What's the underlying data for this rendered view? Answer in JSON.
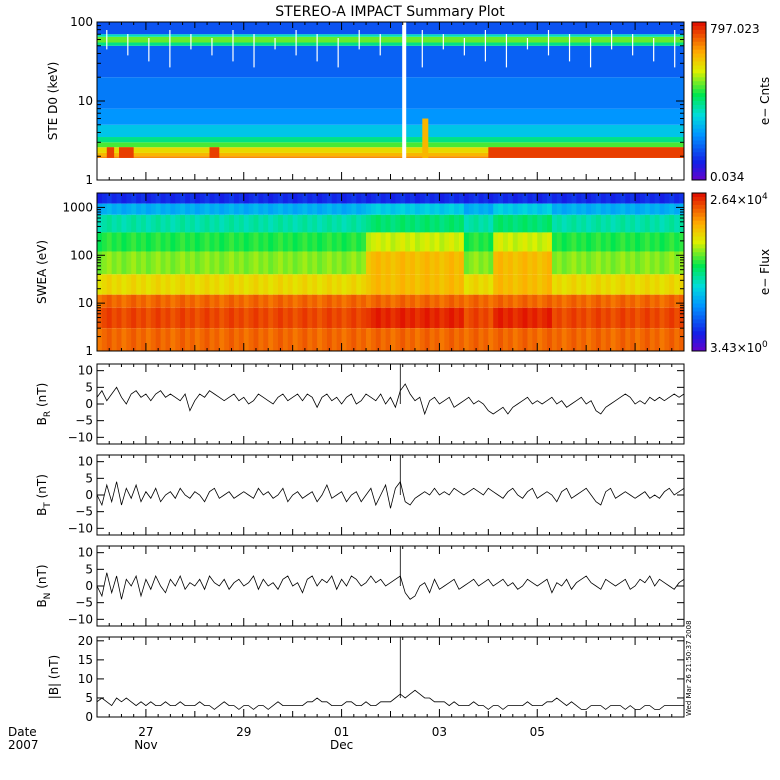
{
  "chart_data": [
    {
      "type": "heatmap",
      "id": "ste",
      "title": "STEREO-A IMPACT Summary Plot",
      "ylabel": "STE D0 (keV)",
      "yscale": "log",
      "ylim": [
        1,
        100
      ],
      "yticks": [
        1,
        10,
        100
      ],
      "ytick_labels": [
        "1",
        "10",
        "100"
      ],
      "colorbar": {
        "label": "e− Cnts",
        "max": "797.023",
        "min": "0.034"
      },
      "data_gap_day": 6.28
    },
    {
      "type": "heatmap",
      "id": "swea",
      "ylabel": "SWEA (eV)",
      "yscale": "log",
      "ylim": [
        1,
        2000
      ],
      "yticks": [
        1,
        10,
        100,
        1000
      ],
      "ytick_labels": [
        "1",
        "10",
        "100",
        "1000"
      ],
      "colorbar": {
        "label": "e− Flux",
        "max_mant": "2.64×10",
        "max_exp": "4",
        "min_mant": "3.43×10",
        "min_exp": "0"
      }
    },
    {
      "type": "line",
      "id": "br",
      "ylabel_main": "B",
      "ylabel_sub": "R",
      "ylabel_unit": " (nT)",
      "ylim": [
        -12,
        12
      ],
      "yticks": [
        -10,
        -5,
        0,
        5,
        10
      ],
      "ytick_labels": [
        "−10",
        "−5",
        "0",
        "5",
        "10"
      ],
      "x": [
        0,
        0.1,
        0.2,
        0.3,
        0.4,
        0.5,
        0.6,
        0.7,
        0.8,
        0.9,
        1,
        1.1,
        1.2,
        1.3,
        1.4,
        1.5,
        1.6,
        1.7,
        1.8,
        1.9,
        2,
        2.1,
        2.2,
        2.3,
        2.4,
        2.5,
        2.6,
        2.7,
        2.8,
        2.9,
        3,
        3.1,
        3.2,
        3.3,
        3.4,
        3.5,
        3.6,
        3.7,
        3.8,
        3.9,
        4,
        4.1,
        4.2,
        4.3,
        4.4,
        4.5,
        4.6,
        4.7,
        4.8,
        4.9,
        5,
        5.1,
        5.2,
        5.3,
        5.4,
        5.5,
        5.6,
        5.7,
        5.8,
        5.9,
        6,
        6.1,
        6.2,
        6.3,
        6.4,
        6.5,
        6.6,
        6.7,
        6.8,
        6.9,
        7,
        7.1,
        7.2,
        7.3,
        7.4,
        7.5,
        7.6,
        7.7,
        7.8,
        7.9,
        8,
        8.1,
        8.2,
        8.3,
        8.4,
        8.5,
        8.6,
        8.7,
        8.8,
        8.9,
        9,
        9.1,
        9.2,
        9.3,
        9.4,
        9.5,
        9.6,
        9.7,
        9.8,
        9.9,
        10,
        10.1,
        10.2,
        10.3,
        10.4,
        10.5,
        10.6,
        10.7,
        10.8,
        10.9,
        11,
        11.1,
        11.2,
        11.3,
        11.4,
        11.5,
        11.6,
        11.7,
        11.8,
        11.9,
        12
      ],
      "values": [
        2,
        4,
        1,
        3,
        5,
        2,
        0,
        3,
        4,
        2,
        3,
        1,
        3,
        4,
        2,
        3,
        2,
        1,
        3,
        -2,
        1,
        3,
        2,
        4,
        3,
        2,
        1,
        2,
        3,
        1,
        2,
        0,
        1,
        3,
        2,
        1,
        0,
        2,
        3,
        1,
        2,
        3,
        1,
        3,
        2,
        -1,
        2,
        3,
        1,
        2,
        0,
        2,
        3,
        0,
        1,
        3,
        2,
        1,
        3,
        0,
        2,
        -1,
        4,
        6,
        3,
        1,
        2,
        -3,
        1,
        2,
        0,
        1,
        2,
        -1,
        0,
        1,
        2,
        0,
        1,
        0,
        -2,
        -3,
        -2,
        -1,
        -3,
        -1,
        0,
        1,
        2,
        0,
        1,
        0,
        1,
        2,
        0,
        1,
        -1,
        0,
        1,
        2,
        0,
        1,
        -2,
        -3,
        -1,
        0,
        1,
        2,
        3,
        2,
        0,
        1,
        0,
        2,
        1,
        2,
        1,
        2,
        3,
        2,
        3
      ]
    },
    {
      "type": "line",
      "id": "bt",
      "ylabel_main": "B",
      "ylabel_sub": "T",
      "ylabel_unit": " (nT)",
      "ylim": [
        -12,
        12
      ],
      "yticks": [
        -10,
        -5,
        0,
        5,
        10
      ],
      "ytick_labels": [
        "−10",
        "−5",
        "0",
        "5",
        "10"
      ],
      "x": [
        0,
        0.1,
        0.2,
        0.3,
        0.4,
        0.5,
        0.6,
        0.7,
        0.8,
        0.9,
        1,
        1.1,
        1.2,
        1.3,
        1.4,
        1.5,
        1.6,
        1.7,
        1.8,
        1.9,
        2,
        2.1,
        2.2,
        2.3,
        2.4,
        2.5,
        2.6,
        2.7,
        2.8,
        2.9,
        3,
        3.1,
        3.2,
        3.3,
        3.4,
        3.5,
        3.6,
        3.7,
        3.8,
        3.9,
        4,
        4.1,
        4.2,
        4.3,
        4.4,
        4.5,
        4.6,
        4.7,
        4.8,
        4.9,
        5,
        5.1,
        5.2,
        5.3,
        5.4,
        5.5,
        5.6,
        5.7,
        5.8,
        5.9,
        6,
        6.1,
        6.2,
        6.3,
        6.4,
        6.5,
        6.6,
        6.7,
        6.8,
        6.9,
        7,
        7.1,
        7.2,
        7.3,
        7.4,
        7.5,
        7.6,
        7.7,
        7.8,
        7.9,
        8,
        8.1,
        8.2,
        8.3,
        8.4,
        8.5,
        8.6,
        8.7,
        8.8,
        8.9,
        9,
        9.1,
        9.2,
        9.3,
        9.4,
        9.5,
        9.6,
        9.7,
        9.8,
        9.9,
        10,
        10.1,
        10.2,
        10.3,
        10.4,
        10.5,
        10.6,
        10.7,
        10.8,
        10.9,
        11,
        11.1,
        11.2,
        11.3,
        11.4,
        11.5,
        11.6,
        11.7,
        11.8,
        11.9,
        12
      ],
      "values": [
        0,
        -3,
        3,
        -2,
        4,
        -3,
        2,
        -1,
        3,
        -2,
        1,
        -1,
        2,
        -2,
        0,
        1,
        -1,
        2,
        0,
        -1,
        1,
        0,
        -2,
        1,
        2,
        -1,
        0,
        1,
        -1,
        0,
        1,
        0,
        -1,
        2,
        0,
        1,
        -1,
        0,
        2,
        -2,
        0,
        1,
        -1,
        0,
        1,
        -2,
        0,
        3,
        -1,
        0,
        1,
        -2,
        0,
        1,
        -2,
        0,
        2,
        -3,
        0,
        3,
        -4,
        2,
        4,
        -2,
        -3,
        -1,
        0,
        1,
        0,
        2,
        0,
        1,
        0,
        2,
        1,
        0,
        1,
        2,
        1,
        0,
        2,
        1,
        0,
        -1,
        1,
        2,
        0,
        -1,
        1,
        2,
        -1,
        0,
        1,
        0,
        -2,
        1,
        2,
        -1,
        0,
        1,
        2,
        0,
        -2,
        -3,
        1,
        2,
        -1,
        0,
        1,
        0,
        -1,
        0,
        1,
        -1,
        0,
        -1,
        1,
        2,
        0,
        1,
        2
      ]
    },
    {
      "type": "line",
      "id": "bn",
      "ylabel_main": "B",
      "ylabel_sub": "N",
      "ylabel_unit": " (nT)",
      "ylim": [
        -12,
        12
      ],
      "yticks": [
        -10,
        -5,
        0,
        5,
        10
      ],
      "ytick_labels": [
        "−10",
        "−5",
        "0",
        "5",
        "10"
      ],
      "x": [
        0,
        0.1,
        0.2,
        0.3,
        0.4,
        0.5,
        0.6,
        0.7,
        0.8,
        0.9,
        1,
        1.1,
        1.2,
        1.3,
        1.4,
        1.5,
        1.6,
        1.7,
        1.8,
        1.9,
        2,
        2.1,
        2.2,
        2.3,
        2.4,
        2.5,
        2.6,
        2.7,
        2.8,
        2.9,
        3,
        3.1,
        3.2,
        3.3,
        3.4,
        3.5,
        3.6,
        3.7,
        3.8,
        3.9,
        4,
        4.1,
        4.2,
        4.3,
        4.4,
        4.5,
        4.6,
        4.7,
        4.8,
        4.9,
        5,
        5.1,
        5.2,
        5.3,
        5.4,
        5.5,
        5.6,
        5.7,
        5.8,
        5.9,
        6,
        6.1,
        6.2,
        6.3,
        6.4,
        6.5,
        6.6,
        6.7,
        6.8,
        6.9,
        7,
        7.1,
        7.2,
        7.3,
        7.4,
        7.5,
        7.6,
        7.7,
        7.8,
        7.9,
        8,
        8.1,
        8.2,
        8.3,
        8.4,
        8.5,
        8.6,
        8.7,
        8.8,
        8.9,
        9,
        9.1,
        9.2,
        9.3,
        9.4,
        9.5,
        9.6,
        9.7,
        9.8,
        9.9,
        10,
        10.1,
        10.2,
        10.3,
        10.4,
        10.5,
        10.6,
        10.7,
        10.8,
        10.9,
        11,
        11.1,
        11.2,
        11.3,
        11.4,
        11.5,
        11.6,
        11.7,
        11.8,
        11.9,
        12
      ],
      "values": [
        0,
        -3,
        4,
        -2,
        3,
        -4,
        2,
        0,
        3,
        -3,
        2,
        -1,
        3,
        0,
        -2,
        2,
        0,
        3,
        -1,
        1,
        0,
        2,
        -1,
        3,
        1,
        0,
        2,
        -1,
        1,
        2,
        0,
        1,
        3,
        -1,
        2,
        0,
        1,
        -1,
        2,
        3,
        0,
        1,
        -2,
        2,
        3,
        0,
        2,
        1,
        3,
        -1,
        2,
        0,
        3,
        2,
        0,
        1,
        3,
        1,
        2,
        0,
        1,
        2,
        3,
        -2,
        -4,
        -3,
        0,
        1,
        -2,
        2,
        -1,
        0,
        1,
        2,
        -1,
        0,
        1,
        2,
        0,
        1,
        2,
        0,
        1,
        2,
        0,
        1,
        -1,
        0,
        2,
        1,
        0,
        1,
        2,
        -2,
        1,
        0,
        2,
        -1,
        1,
        2,
        3,
        1,
        0,
        -1,
        2,
        1,
        0,
        1,
        2,
        -1,
        0,
        2,
        1,
        3,
        0,
        2,
        1,
        0,
        -1,
        1,
        2
      ]
    },
    {
      "type": "line",
      "id": "bmag",
      "ylabel_main": "|B|",
      "ylabel_sub": "",
      "ylabel_unit": " (nT)",
      "ylim": [
        0,
        21
      ],
      "yticks": [
        0,
        5,
        10,
        15,
        20
      ],
      "ytick_labels": [
        "0",
        "5",
        "10",
        "15",
        "20"
      ],
      "x": [
        0,
        0.1,
        0.2,
        0.3,
        0.4,
        0.5,
        0.6,
        0.7,
        0.8,
        0.9,
        1,
        1.1,
        1.2,
        1.3,
        1.4,
        1.5,
        1.6,
        1.7,
        1.8,
        1.9,
        2,
        2.1,
        2.2,
        2.3,
        2.4,
        2.5,
        2.6,
        2.7,
        2.8,
        2.9,
        3,
        3.1,
        3.2,
        3.3,
        3.4,
        3.5,
        3.6,
        3.7,
        3.8,
        3.9,
        4,
        4.1,
        4.2,
        4.3,
        4.4,
        4.5,
        4.6,
        4.7,
        4.8,
        4.9,
        5,
        5.1,
        5.2,
        5.3,
        5.4,
        5.5,
        5.6,
        5.7,
        5.8,
        5.9,
        6,
        6.1,
        6.2,
        6.3,
        6.4,
        6.5,
        6.6,
        6.7,
        6.8,
        6.9,
        7,
        7.1,
        7.2,
        7.3,
        7.4,
        7.5,
        7.6,
        7.7,
        7.8,
        7.9,
        8,
        8.1,
        8.2,
        8.3,
        8.4,
        8.5,
        8.6,
        8.7,
        8.8,
        8.9,
        9,
        9.1,
        9.2,
        9.3,
        9.4,
        9.5,
        9.6,
        9.7,
        9.8,
        9.9,
        10,
        10.1,
        10.2,
        10.3,
        10.4,
        10.5,
        10.6,
        10.7,
        10.8,
        10.9,
        11,
        11.1,
        11.2,
        11.3,
        11.4,
        11.5,
        11.6,
        11.7,
        11.8,
        11.9,
        12
      ],
      "values": [
        4,
        5,
        4,
        3,
        5,
        4,
        5,
        4,
        3,
        4,
        3,
        4,
        3,
        3,
        4,
        3,
        3,
        4,
        3,
        3,
        3,
        4,
        3,
        3,
        2,
        3,
        4,
        3,
        3,
        2,
        3,
        3,
        2,
        3,
        3,
        2,
        3,
        4,
        3,
        3,
        3,
        3,
        3,
        4,
        4,
        5,
        4,
        4,
        3,
        3,
        3,
        4,
        4,
        3,
        3,
        4,
        3,
        3,
        4,
        4,
        4,
        5,
        6,
        5,
        6,
        7,
        6,
        5,
        5,
        4,
        4,
        4,
        3,
        4,
        3,
        3,
        3,
        4,
        3,
        3,
        2,
        3,
        3,
        2,
        3,
        3,
        3,
        3,
        4,
        3,
        3,
        3,
        4,
        4,
        5,
        4,
        3,
        4,
        3,
        2,
        2,
        3,
        3,
        3,
        2,
        3,
        3,
        3,
        2,
        3,
        2,
        2,
        3,
        3,
        2,
        2,
        3,
        3,
        3,
        3,
        3
      ]
    }
  ],
  "spike_day": 6.2,
  "xaxis": {
    "xlim": [
      0,
      12
    ],
    "ticks": [
      {
        "day": 1.0,
        "top": "27",
        "bottom": "Nov"
      },
      {
        "day": 3.0,
        "top": "29",
        "bottom": ""
      },
      {
        "day": 5.0,
        "top": "01",
        "bottom": "Dec"
      },
      {
        "day": 7.0,
        "top": "03",
        "bottom": ""
      },
      {
        "day": 9.0,
        "top": "05",
        "bottom": ""
      }
    ],
    "corner_top": "Date",
    "corner_bottom": "2007"
  },
  "timestamp": "Wed Mar 26 21:50:37 2008"
}
